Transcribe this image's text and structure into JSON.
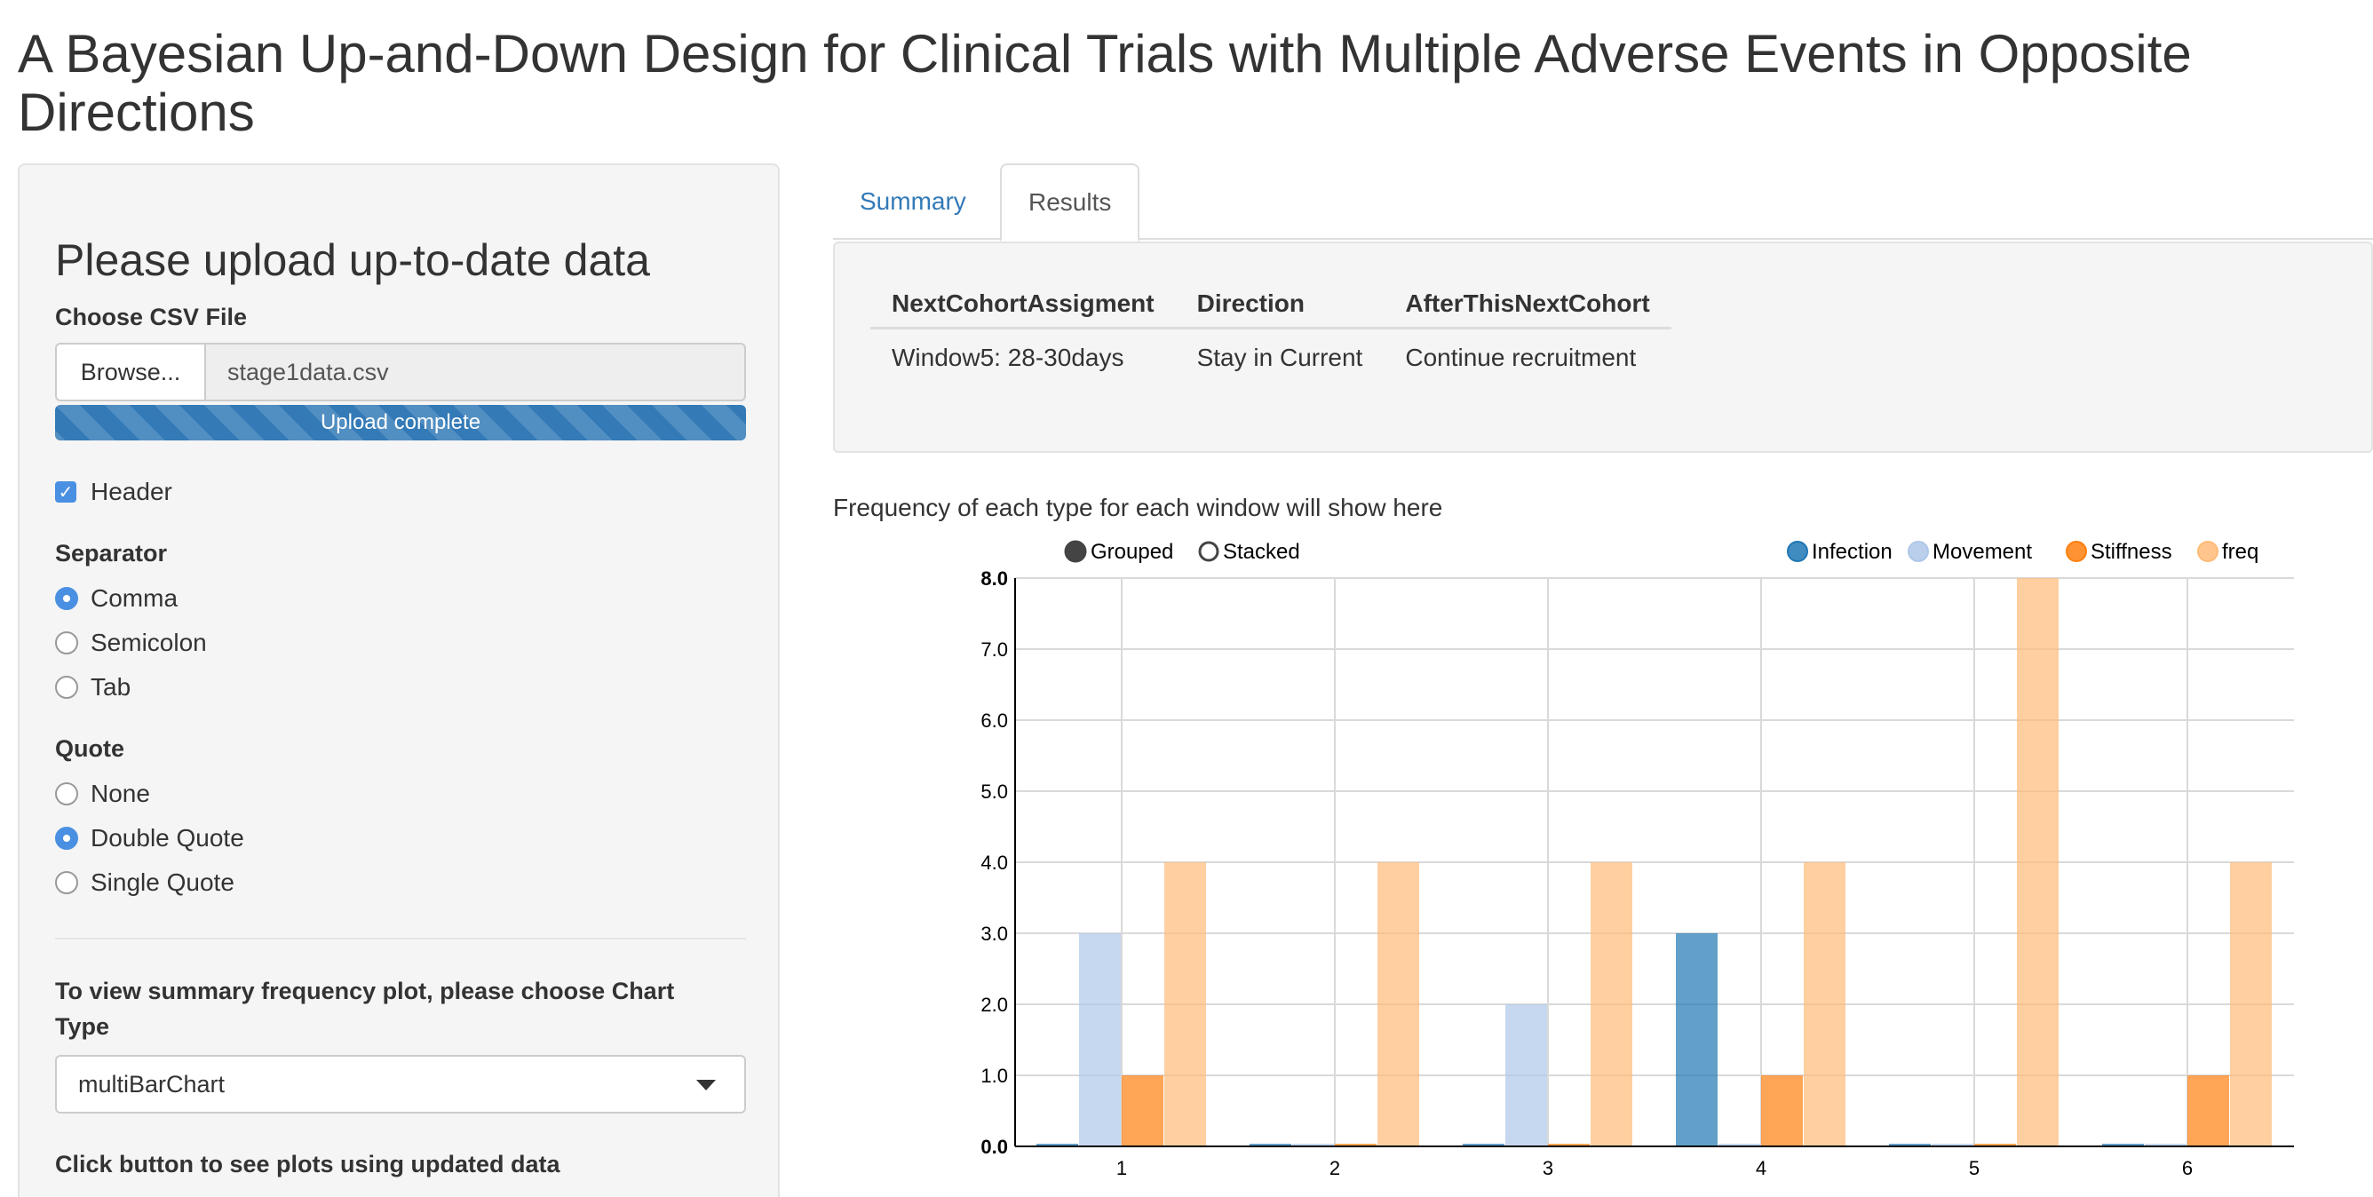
{
  "page_title": "A Bayesian Up-and-Down Design for Clinical Trials with Multiple Adverse Events in Opposite Directions",
  "sidebar": {
    "heading": "Please upload up-to-date data",
    "file_label": "Choose CSV File",
    "browse_label": "Browse...",
    "file_name": "stage1data.csv",
    "progress_text": "Upload complete",
    "progress_fraction": 1.0,
    "header_label": "Header",
    "header_checked": true,
    "separator_label": "Separator",
    "separator_options": [
      "Comma",
      "Semicolon",
      "Tab"
    ],
    "separator_selected": "Comma",
    "quote_label": "Quote",
    "quote_options": [
      "None",
      "Double Quote",
      "Single Quote"
    ],
    "quote_selected": "Double Quote",
    "chart_type_label": "To view summary frequency plot, please choose Chart Type",
    "chart_type_value": "multiBarChart",
    "plots_button_label": "Click button to see plots using updated data"
  },
  "tabs": [
    {
      "label": "Summary",
      "active": false
    },
    {
      "label": "Results",
      "active": true
    }
  ],
  "results_table": {
    "headers": [
      "NextCohortAssigment",
      "Direction",
      "AfterThisNextCohort"
    ],
    "rows": [
      [
        "Window5: 28-30days",
        "Stay in Current",
        "Continue recruitment"
      ]
    ]
  },
  "plot_caption": "Frequency of each type for each window will show here",
  "chart_controls": {
    "grouped_label": "Grouped",
    "stacked_label": "Stacked",
    "mode_selected": "Grouped"
  },
  "colors": {
    "accent": "#337ab7",
    "checkbox": "#4a90e2"
  },
  "chart_data": {
    "type": "bar",
    "categories": [
      "1",
      "2",
      "3",
      "4",
      "5",
      "6"
    ],
    "series": [
      {
        "name": "Infection",
        "color": "#1f77b4",
        "values": [
          0,
          0,
          0,
          3,
          0,
          0
        ]
      },
      {
        "name": "Movement",
        "color": "#aec7e8",
        "values": [
          3,
          0,
          2,
          0,
          0,
          0
        ]
      },
      {
        "name": "Stiffness",
        "color": "#ff7f0e",
        "values": [
          1,
          0,
          0,
          1,
          0,
          1
        ]
      },
      {
        "name": "freq",
        "color": "#ffbb78",
        "values": [
          4,
          4,
          4,
          4,
          8,
          4
        ]
      }
    ],
    "ylim": [
      0,
      8
    ],
    "yticks": [
      "0.0",
      "1.0",
      "2.0",
      "3.0",
      "4.0",
      "5.0",
      "6.0",
      "7.0",
      "8.0"
    ],
    "grid": true,
    "legend_position": "top-right"
  }
}
